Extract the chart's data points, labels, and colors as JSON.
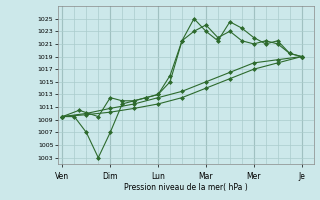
{
  "background_color": "#cce8ea",
  "grid_color": "#aacccc",
  "line_color": "#2d6a2d",
  "marker": "D",
  "marker_size": 2,
  "ylabel": "Pression niveau de la mer( hPa )",
  "ylim": [
    1002,
    1027
  ],
  "yticks": [
    1003,
    1005,
    1007,
    1009,
    1011,
    1013,
    1015,
    1017,
    1019,
    1021,
    1023,
    1025
  ],
  "x_labels": [
    "Ven",
    "Dim",
    "Lun",
    "Mar",
    "Mer",
    "Je"
  ],
  "x_positions": [
    0,
    2,
    4,
    6,
    8,
    10
  ],
  "series1_x": [
    0,
    0.5,
    1.0,
    1.5,
    2.0,
    2.5,
    3.0,
    3.5,
    4.0,
    4.5,
    5.0,
    5.5,
    6.0,
    6.5,
    7.0,
    7.5,
    8.0,
    8.5,
    9.0,
    9.5,
    10.0
  ],
  "series1": [
    1009.5,
    1009.5,
    1007.0,
    1003.0,
    1007.0,
    1011.5,
    1012.0,
    1012.5,
    1013.0,
    1015.0,
    1021.5,
    1025.0,
    1023.0,
    1021.5,
    1024.5,
    1023.5,
    1022.0,
    1021.0,
    1021.5,
    1019.5,
    1019.0
  ],
  "series2_x": [
    0,
    0.7,
    1.5,
    2.0,
    2.5,
    3.0,
    3.5,
    4.0,
    4.5,
    5.0,
    5.5,
    6.0,
    6.5,
    7.0,
    7.5,
    8.0,
    8.5,
    9.0,
    9.5,
    10.0
  ],
  "series2": [
    1009.5,
    1010.5,
    1009.5,
    1012.5,
    1012.0,
    1012.0,
    1012.5,
    1013.0,
    1016.0,
    1021.5,
    1023.0,
    1024.0,
    1022.0,
    1023.0,
    1021.5,
    1021.0,
    1021.5,
    1021.0,
    1019.5,
    1019.0
  ],
  "series3_x": [
    0,
    1.0,
    2.0,
    3.0,
    4.0,
    5.0,
    6.0,
    7.0,
    8.0,
    9.0,
    10.0
  ],
  "series3": [
    1009.5,
    1010.0,
    1010.8,
    1011.5,
    1012.5,
    1013.5,
    1015.0,
    1016.5,
    1018.0,
    1018.5,
    1019.0
  ],
  "series4_x": [
    0,
    1.0,
    2.0,
    3.0,
    4.0,
    5.0,
    6.0,
    7.0,
    8.0,
    9.0,
    10.0
  ],
  "series4": [
    1009.5,
    1009.8,
    1010.2,
    1010.8,
    1011.5,
    1012.5,
    1014.0,
    1015.5,
    1017.0,
    1018.0,
    1019.0
  ]
}
